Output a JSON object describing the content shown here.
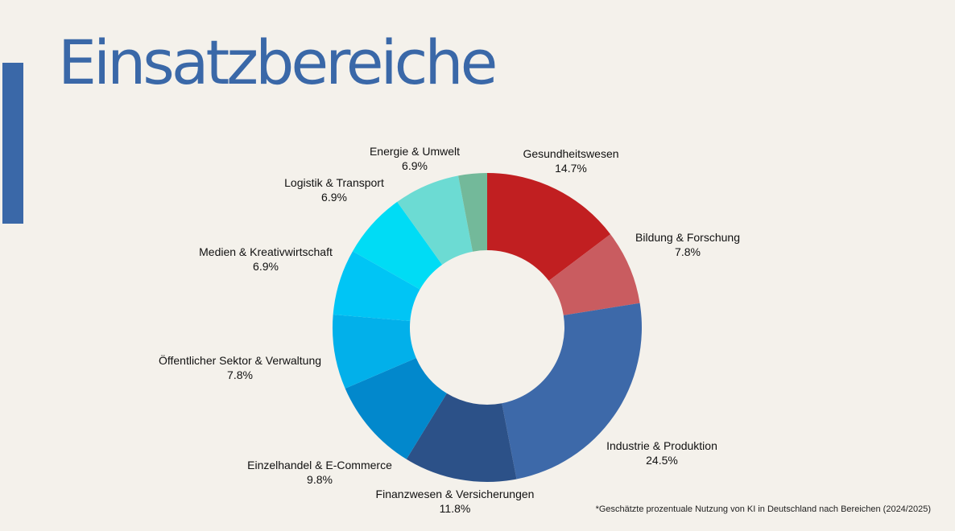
{
  "slide": {
    "title": "Einsatzbereiche",
    "footnote": "*Geschätzte prozentuale Nutzung von KI in Deutschland nach Bereichen (2024/2025)",
    "accent_color": "#3a68a8",
    "background_color": "#f4f1eb"
  },
  "chart_data": {
    "type": "pie",
    "variant": "donut",
    "title": "",
    "legend": "none",
    "slices": [
      {
        "label": "Gesundheitswesen",
        "value": 14.7,
        "value_label": "14.7%",
        "color": "#c11f21"
      },
      {
        "label": "Bildung & Forschung",
        "value": 7.8,
        "value_label": "7.8%",
        "color": "#c95c60"
      },
      {
        "label": "Industrie & Produktion",
        "value": 24.5,
        "value_label": "24.5%",
        "color": "#3d69a9"
      },
      {
        "label": "Finanzwesen & Versicherungen",
        "value": 11.8,
        "value_label": "11.8%",
        "color": "#2c5188"
      },
      {
        "label": "Einzelhandel & E-Commerce",
        "value": 9.8,
        "value_label": "9.8%",
        "color": "#0288cc"
      },
      {
        "label": "Öffentlicher Sektor & Verwaltung",
        "value": 7.8,
        "value_label": "7.8%",
        "color": "#02b0ea"
      },
      {
        "label": "Medien & Kreativwirtschaft",
        "value": 6.9,
        "value_label": "6.9%",
        "color": "#00c5f5"
      },
      {
        "label": "Logistik & Transport",
        "value": 6.9,
        "value_label": "6.9%",
        "color": "#00dcf5"
      },
      {
        "label": "Energie & Umwelt",
        "value": 6.9,
        "value_label": "6.9%",
        "color": "#6cdbd3"
      },
      {
        "label": "",
        "value": 3.0,
        "value_label": "",
        "color": "#73b99a"
      }
    ]
  }
}
